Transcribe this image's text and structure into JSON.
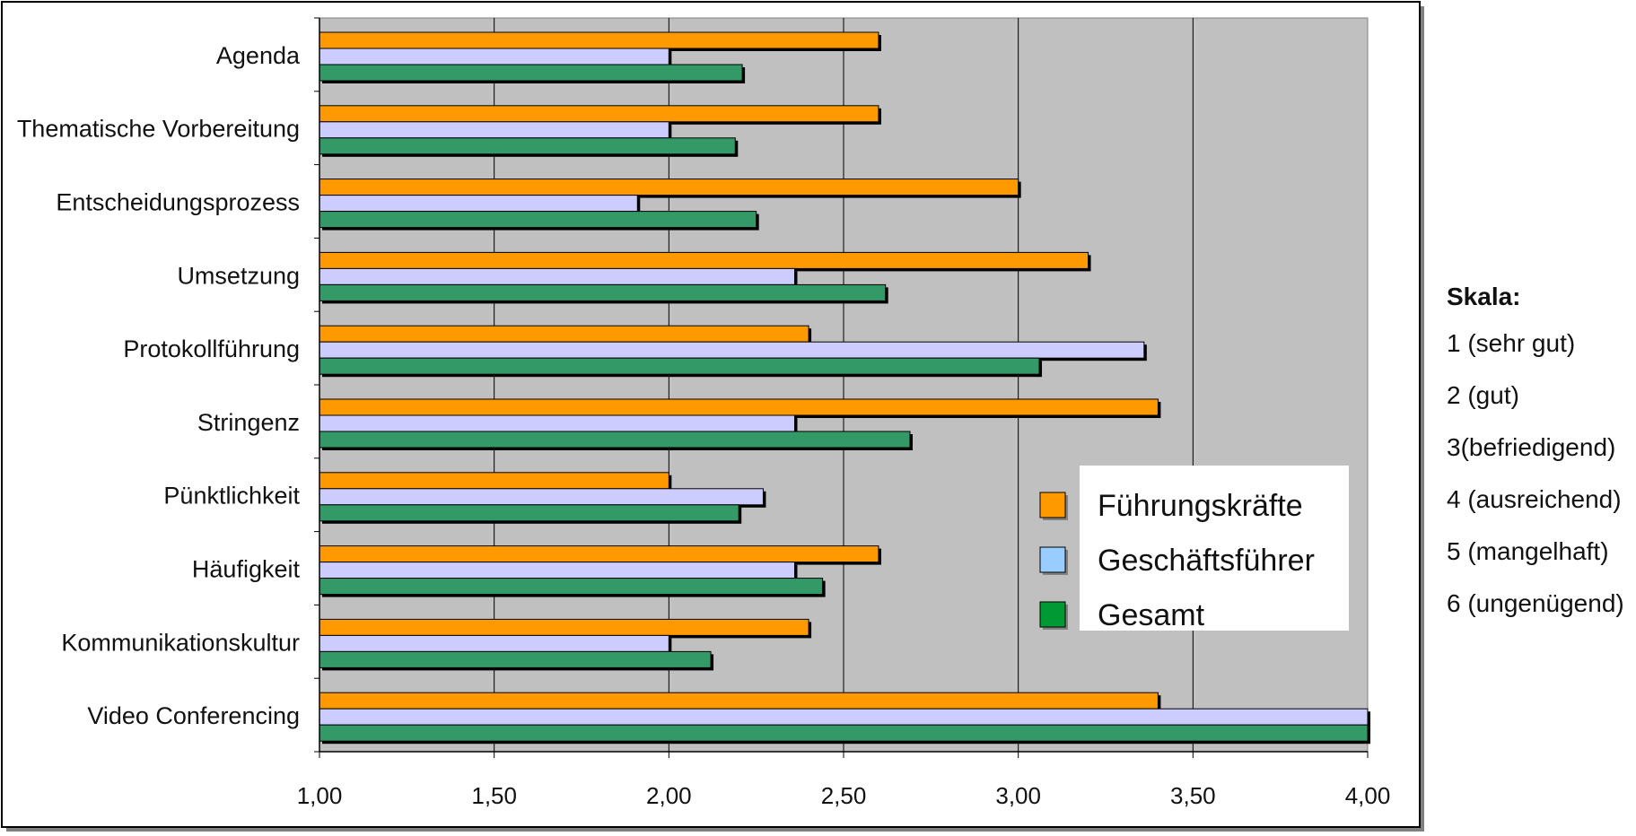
{
  "chart_data": {
    "type": "bar",
    "orientation": "horizontal",
    "categories": [
      "Agenda",
      "Thematische Vorbereitung",
      "Entscheidungsprozess",
      "Umsetzung",
      "Protokollführung",
      "Stringenz",
      "Pünktlichkeit",
      "Häufigkeit",
      "Kommunikationskultur",
      "Video Conferencing"
    ],
    "series": [
      {
        "name": "Führungskräfte",
        "color": "#FF9900",
        "values": [
          2.6,
          2.6,
          3.0,
          3.2,
          2.4,
          3.4,
          2.0,
          2.6,
          2.4,
          3.4
        ]
      },
      {
        "name": "Geschäftsführer",
        "color": "#CCCCFF",
        "values": [
          2.0,
          2.0,
          1.91,
          2.36,
          3.36,
          2.36,
          2.27,
          2.36,
          2.0,
          4.0
        ]
      },
      {
        "name": "Gesamt",
        "color": "#339966",
        "values": [
          2.21,
          2.19,
          2.25,
          2.62,
          3.06,
          2.69,
          2.2,
          2.44,
          2.12,
          4.0
        ]
      }
    ],
    "xlim": [
      1.0,
      4.0
    ],
    "xticks": [
      "1,00",
      "1,50",
      "2,00",
      "2,50",
      "3,00",
      "3,50",
      "4,00"
    ],
    "xtick_values": [
      1.0,
      1.5,
      2.0,
      2.5,
      3.0,
      3.5,
      4.0
    ],
    "grid": true,
    "legend": "inside-lower-right",
    "legend_colors": [
      "#FF9900",
      "#99CCFF",
      "#009933"
    ],
    "title": "",
    "xlabel": "",
    "ylabel": ""
  },
  "scale": {
    "title": "Skala",
    "items": [
      "1 (sehr gut)",
      "2 (gut)",
      "3(befriedigend)",
      "4 (ausreichend)",
      "5 (mangelhaft)",
      "6 (ungenügend)"
    ]
  }
}
